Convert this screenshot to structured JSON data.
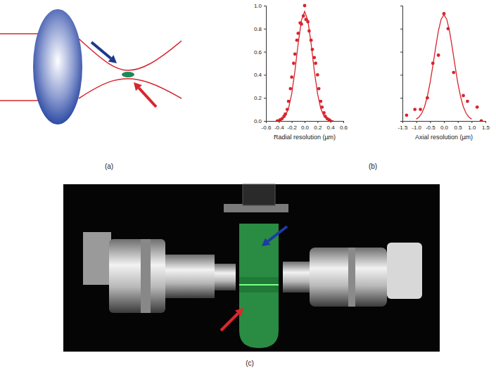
{
  "panel_labels": [
    "(a)",
    "(b)",
    "(c)"
  ],
  "chart_data": [
    {
      "type": "scatter",
      "x_label": "Radial resolution (µm)",
      "xlim": [
        -0.6,
        0.6
      ],
      "xticks": [
        -0.6,
        -0.4,
        -0.2,
        {
          "value": 0,
          "label": "0.0"
        },
        0.2,
        0.4,
        0.6
      ],
      "ylim": [
        0,
        1
      ],
      "yticks": [
        {
          "value": 0,
          "label": "0.0"
        },
        0.2,
        0.4,
        0.6,
        0.8,
        {
          "value": 1,
          "label": "1.0"
        }
      ],
      "series": [
        {
          "type": "scatter",
          "marker": "circle",
          "color": "#d7262e",
          "x": [
            -0.42,
            -0.38,
            -0.35,
            -0.32,
            -0.3,
            -0.27,
            -0.25,
            -0.22,
            -0.2,
            -0.17,
            -0.15,
            -0.12,
            -0.1,
            -0.07,
            -0.05,
            -0.02,
            0,
            0.02,
            0.05,
            0.07,
            0.1,
            0.12,
            0.15,
            0.17,
            0.2,
            0.22,
            0.25,
            0.27,
            0.3,
            0.32,
            0.35,
            0.38,
            0.4
          ],
          "values": [
            0.0,
            0.01,
            0.02,
            0.04,
            0.06,
            0.1,
            0.17,
            0.28,
            0.38,
            0.5,
            0.58,
            0.7,
            0.76,
            0.85,
            0.84,
            0.91,
            1.0,
            0.88,
            0.86,
            0.78,
            0.7,
            0.62,
            0.55,
            0.5,
            0.4,
            0.28,
            0.17,
            0.12,
            0.07,
            0.04,
            0.02,
            0.01,
            0.0
          ]
        },
        {
          "type": "line",
          "line_style": "solid",
          "color": "#d7262e",
          "x": [
            -0.45,
            -0.4,
            -0.35,
            -0.3,
            -0.25,
            -0.2,
            -0.15,
            -0.1,
            -0.05,
            0,
            0.05,
            0.1,
            0.15,
            0.2,
            0.25,
            0.3,
            0.35,
            0.4,
            0.45
          ],
          "values": [
            0.001,
            0.004,
            0.013,
            0.042,
            0.108,
            0.237,
            0.435,
            0.672,
            0.871,
            0.95,
            0.871,
            0.672,
            0.435,
            0.237,
            0.108,
            0.042,
            0.013,
            0.004,
            0.001
          ]
        }
      ]
    },
    {
      "type": "scatter",
      "x_label": "Axial resolution (µm)",
      "tick_labels": "x",
      "xlim": [
        -1.5,
        1.5
      ],
      "xticks": [
        -1.5,
        {
          "value": -1,
          "label": "-1.0"
        },
        -0.5,
        {
          "value": 0,
          "label": "0.0"
        },
        0.5,
        {
          "value": 1,
          "label": "1.0"
        },
        1.5
      ],
      "ylim": [
        0,
        1
      ],
      "yticks": [
        0,
        0.2,
        0.4,
        0.6,
        0.8,
        1
      ],
      "series": [
        {
          "type": "scatter",
          "marker": "circle",
          "color": "#d7262e",
          "x": [
            -1.35,
            -1.05,
            -0.85,
            -0.6,
            -0.4,
            -0.2,
            0.0,
            0.15,
            0.35,
            0.7,
            0.85,
            1.2,
            1.35
          ],
          "values": [
            0.05,
            0.1,
            0.1,
            0.2,
            0.5,
            0.57,
            0.93,
            0.8,
            0.42,
            0.22,
            0.17,
            0.12,
            0.0
          ]
        },
        {
          "type": "line",
          "line_style": "solid",
          "color": "#d7262e",
          "x": [
            -1.0,
            -0.9,
            -0.8,
            -0.7,
            -0.6,
            -0.5,
            -0.4,
            -0.3,
            -0.2,
            -0.1,
            0,
            0.1,
            0.2,
            0.3,
            0.4,
            0.5,
            0.6,
            0.7,
            0.8,
            0.9,
            1.0
          ],
          "values": [
            0.016,
            0.034,
            0.067,
            0.124,
            0.212,
            0.332,
            0.479,
            0.637,
            0.781,
            0.883,
            0.92,
            0.883,
            0.781,
            0.637,
            0.479,
            0.332,
            0.212,
            0.124,
            0.067,
            0.034,
            0.016
          ]
        }
      ]
    }
  ]
}
